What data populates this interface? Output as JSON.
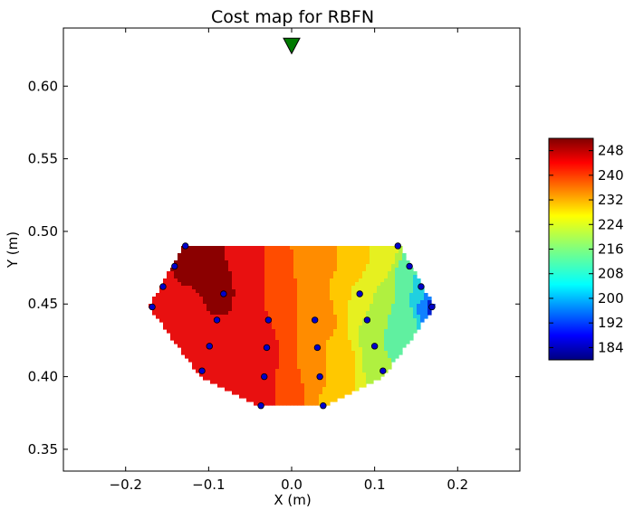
{
  "chart_data": {
    "type": "heatmap",
    "title": "Cost map for RBFN",
    "xlabel": "X (m)",
    "ylabel": "Y (m)",
    "xlim": [
      -0.275,
      0.275
    ],
    "ylim": [
      0.335,
      0.64
    ],
    "x_ticks": [
      -0.2,
      -0.1,
      0.0,
      0.1,
      0.2
    ],
    "x_tick_labels": [
      "−0.2",
      "−0.1",
      "0.0",
      "0.1",
      "0.2"
    ],
    "y_ticks": [
      0.35,
      0.4,
      0.45,
      0.5,
      0.55,
      0.6
    ],
    "y_tick_labels": [
      "0.35",
      "0.40",
      "0.45",
      "0.50",
      "0.55",
      "0.60"
    ],
    "grid": false,
    "colorbar": {
      "min": 180,
      "max": 252,
      "ticks": [
        184,
        192,
        200,
        208,
        216,
        224,
        232,
        240,
        248
      ],
      "tick_labels": [
        "184",
        "192",
        "200",
        "208",
        "216",
        "224",
        "232",
        "240",
        "248"
      ],
      "colormap": "jet"
    },
    "contour_bands": [
      {
        "level": 252,
        "color": "#8b0000"
      },
      {
        "level": 244,
        "color": "#e81010"
      },
      {
        "level": 236,
        "color": "#ff4c00"
      },
      {
        "level": 232,
        "color": "#ff8c00"
      },
      {
        "level": 228,
        "color": "#ffc800"
      },
      {
        "level": 224,
        "color": "#e6f020"
      },
      {
        "level": 220,
        "color": "#b0f040"
      },
      {
        "level": 216,
        "color": "#60f0a0"
      },
      {
        "level": 208,
        "color": "#20d0e0"
      },
      {
        "level": 200,
        "color": "#1080ff"
      },
      {
        "level": 192,
        "color": "#0020d0"
      },
      {
        "level": 184,
        "color": "#000080"
      }
    ],
    "target": {
      "x": 0.0,
      "y": 0.628,
      "marker": "triangle-down",
      "color": "#007a00"
    },
    "sample_points": [
      {
        "x": -0.128,
        "y": 0.49
      },
      {
        "x": -0.141,
        "y": 0.476
      },
      {
        "x": -0.155,
        "y": 0.462
      },
      {
        "x": -0.168,
        "y": 0.448
      },
      {
        "x": -0.082,
        "y": 0.457
      },
      {
        "x": -0.09,
        "y": 0.439
      },
      {
        "x": -0.099,
        "y": 0.421
      },
      {
        "x": -0.108,
        "y": 0.404
      },
      {
        "x": -0.028,
        "y": 0.439
      },
      {
        "x": -0.03,
        "y": 0.42
      },
      {
        "x": -0.033,
        "y": 0.4
      },
      {
        "x": -0.037,
        "y": 0.38
      },
      {
        "x": 0.028,
        "y": 0.439
      },
      {
        "x": 0.031,
        "y": 0.42
      },
      {
        "x": 0.034,
        "y": 0.4
      },
      {
        "x": 0.038,
        "y": 0.38
      },
      {
        "x": 0.082,
        "y": 0.457
      },
      {
        "x": 0.091,
        "y": 0.439
      },
      {
        "x": 0.1,
        "y": 0.421
      },
      {
        "x": 0.11,
        "y": 0.404
      },
      {
        "x": 0.128,
        "y": 0.49
      },
      {
        "x": 0.142,
        "y": 0.476
      },
      {
        "x": 0.156,
        "y": 0.462
      },
      {
        "x": 0.169,
        "y": 0.448
      }
    ],
    "point_color": "#0000cc"
  }
}
